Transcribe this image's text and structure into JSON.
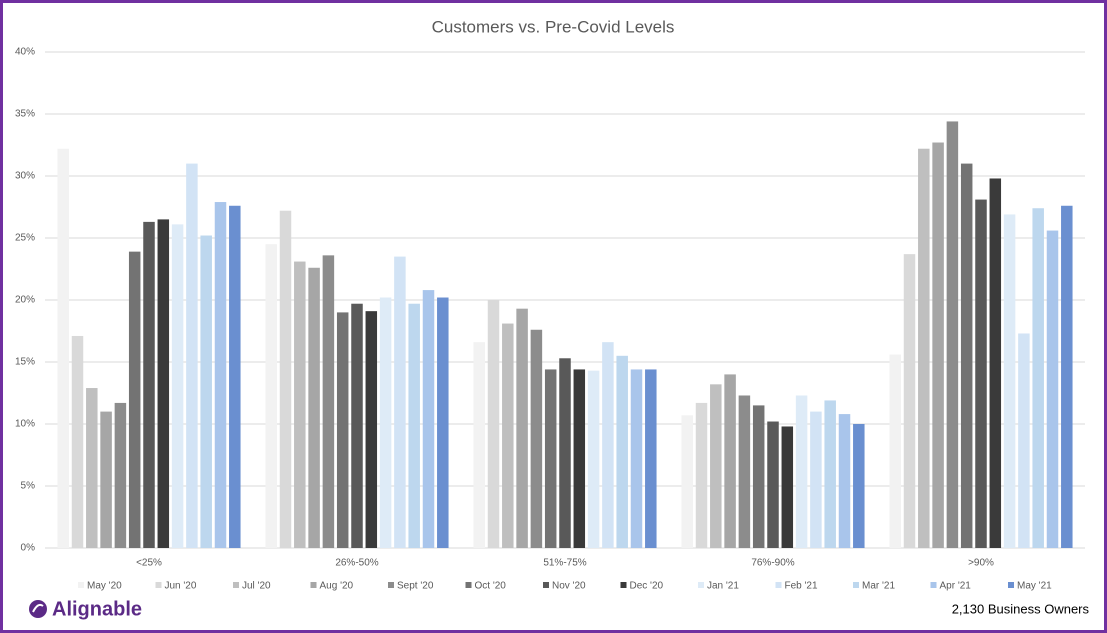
{
  "chart_data": {
    "type": "bar",
    "title": "Customers vs. Pre-Covid Levels",
    "categories": [
      "<25%",
      "26%-50%",
      "51%-75%",
      "76%-90%",
      ">90%"
    ],
    "series": [
      {
        "name": "May '20",
        "color": "#f2f2f2",
        "values": [
          32.2,
          24.5,
          16.6,
          10.7,
          15.6
        ]
      },
      {
        "name": "Jun '20",
        "color": "#d9d9d9",
        "values": [
          17.1,
          27.2,
          20.0,
          11.7,
          23.7
        ]
      },
      {
        "name": "Jul '20",
        "color": "#bfbfbf",
        "values": [
          12.9,
          23.1,
          18.1,
          13.2,
          32.2
        ]
      },
      {
        "name": "Aug '20",
        "color": "#a6a6a6",
        "values": [
          11.0,
          22.6,
          19.3,
          14.0,
          32.7
        ]
      },
      {
        "name": "Sept '20",
        "color": "#8c8c8c",
        "values": [
          11.7,
          23.6,
          17.6,
          12.3,
          34.4
        ]
      },
      {
        "name": "Oct '20",
        "color": "#737373",
        "values": [
          23.9,
          19.0,
          14.4,
          11.5,
          31.0
        ]
      },
      {
        "name": "Nov '20",
        "color": "#595959",
        "values": [
          26.3,
          19.7,
          15.3,
          10.2,
          28.1
        ]
      },
      {
        "name": "Dec '20",
        "color": "#3a3a3a",
        "values": [
          26.5,
          19.1,
          14.4,
          9.8,
          29.8
        ]
      },
      {
        "name": "Jan '21",
        "color": "#deebf7",
        "values": [
          26.1,
          20.2,
          14.3,
          12.3,
          26.9
        ]
      },
      {
        "name": "Feb '21",
        "color": "#d2e3f5",
        "values": [
          31.0,
          23.5,
          16.6,
          11.0,
          17.3
        ]
      },
      {
        "name": "Mar '21",
        "color": "#bdd7ee",
        "values": [
          25.2,
          19.7,
          15.5,
          11.9,
          27.4
        ]
      },
      {
        "name": "Apr '21",
        "color": "#a9c5eb",
        "values": [
          27.9,
          20.8,
          14.4,
          10.8,
          25.6
        ]
      },
      {
        "name": "May '21",
        "color": "#6a8fd0",
        "values": [
          27.6,
          20.2,
          14.4,
          10.0,
          27.6
        ]
      }
    ],
    "ylim": [
      0,
      40
    ],
    "yticks": [
      {
        "value": 0,
        "label": "0%"
      },
      {
        "value": 5,
        "label": "5%"
      },
      {
        "value": 10,
        "label": "10%"
      },
      {
        "value": 15,
        "label": "15%"
      },
      {
        "value": 20,
        "label": "20%"
      },
      {
        "value": 25,
        "label": "25%"
      },
      {
        "value": 30,
        "label": "30%"
      },
      {
        "value": 35,
        "label": "35%"
      },
      {
        "value": 40,
        "label": "40%"
      }
    ],
    "grid": true,
    "legend": "bottom"
  },
  "brand": "Alignable",
  "footnote": "2,130 Business Owners"
}
